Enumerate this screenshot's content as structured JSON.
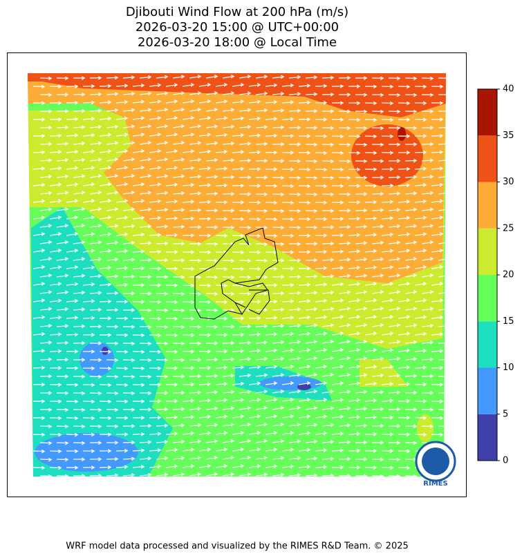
{
  "header": {
    "title_lines": [
      "Djibouti Wind Flow at 200 hPa (m/s)",
      "2026-03-20 15:00 @ UTC+00:00",
      "2026-03-20 18:00 @ Local Time"
    ]
  },
  "colorbar": {
    "bounds": [
      0,
      5,
      10,
      15,
      20,
      25,
      30,
      35,
      40
    ],
    "colors": [
      "#3f3faa",
      "#4499ff",
      "#1ddfc0",
      "#66ff5a",
      "#cceb2f",
      "#fdad35",
      "#ee5216",
      "#a81500"
    ],
    "ticks": [
      0,
      5,
      10,
      15,
      20,
      25,
      30,
      35,
      40
    ]
  },
  "logo": {
    "text": "RIMES"
  },
  "footer": {
    "text": "WRF model data processed and visualized by the RIMES R&D Team. © 2025"
  }
}
